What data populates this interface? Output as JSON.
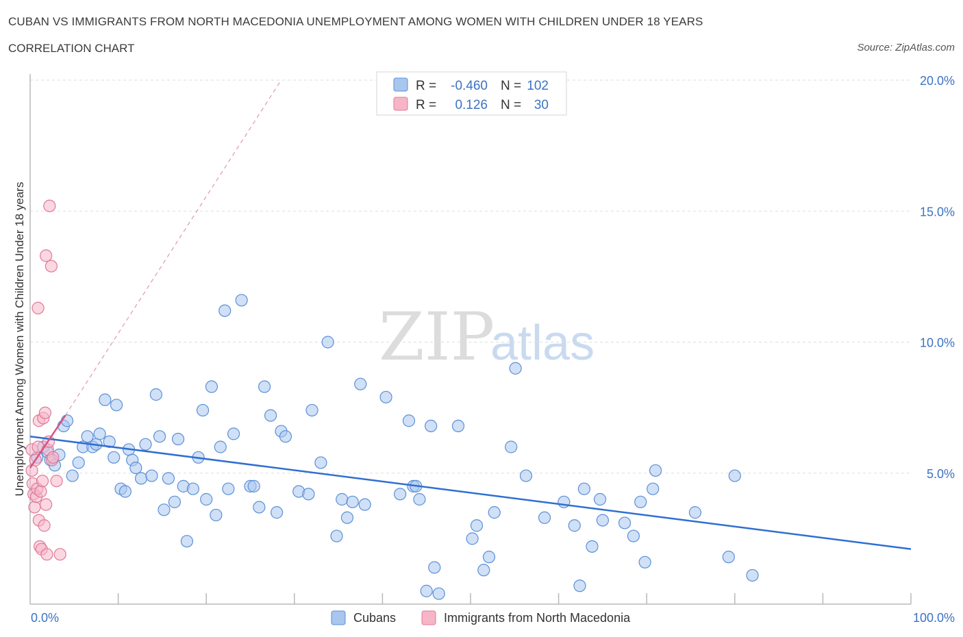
{
  "header": {
    "title": "CUBAN VS IMMIGRANTS FROM NORTH MACEDONIA UNEMPLOYMENT AMONG WOMEN WITH CHILDREN UNDER 18 YEARS",
    "subtitle": "CORRELATION CHART",
    "source": "Source: ZipAtlas.com"
  },
  "watermark": {
    "zip": "ZIP",
    "atlas": "atlas"
  },
  "colors": {
    "blue_fill": "#a9c6ef",
    "blue_stroke": "#5b8fd6",
    "blue_line": "#2f6fd1",
    "pink_fill": "#f6b6c8",
    "pink_stroke": "#e07898",
    "pink_line": "#d9537e",
    "grid": "#dddddd",
    "axis_label": "#3b72c4"
  },
  "legend": {
    "rows": [
      {
        "r_label": "R =",
        "r_value": "-0.460",
        "n_label": "N =",
        "n_value": "102"
      },
      {
        "r_label": "R =",
        "r_value": "0.126",
        "n_label": "N =",
        "n_value": "30"
      }
    ]
  },
  "bottom_legend": {
    "cubans": "Cubans",
    "macedonia": "Immigrants from North Macedonia"
  },
  "chart_data": {
    "type": "scatter",
    "ylabel": "Unemployment Among Women with Children Under 18 years",
    "xlim": [
      0,
      100
    ],
    "ylim": [
      0,
      20
    ],
    "x_tick_labels": [
      "0.0%",
      "100.0%"
    ],
    "y_tick_labels": [
      "5.0%",
      "10.0%",
      "15.0%",
      "20.0%"
    ],
    "y_ticks": [
      5,
      10,
      15,
      20
    ],
    "grid": "horizontal dashed",
    "legend_position": "top-center",
    "series": [
      {
        "name": "Cubans",
        "r": -0.46,
        "n": 102,
        "trend": [
          [
            0,
            6.4
          ],
          [
            100,
            2.1
          ]
        ],
        "points": [
          [
            0.8,
            5.6
          ],
          [
            1.5,
            6.0
          ],
          [
            2.0,
            5.8
          ],
          [
            2.3,
            5.5
          ],
          [
            2.8,
            5.3
          ],
          [
            3.3,
            5.7
          ],
          [
            3.8,
            6.8
          ],
          [
            4.2,
            7.0
          ],
          [
            4.8,
            4.9
          ],
          [
            5.5,
            5.4
          ],
          [
            6.0,
            6.0
          ],
          [
            6.5,
            6.4
          ],
          [
            7.1,
            6.0
          ],
          [
            7.5,
            6.1
          ],
          [
            7.9,
            6.5
          ],
          [
            8.5,
            7.8
          ],
          [
            9.0,
            6.2
          ],
          [
            9.5,
            5.6
          ],
          [
            9.8,
            7.6
          ],
          [
            10.3,
            4.4
          ],
          [
            10.8,
            4.3
          ],
          [
            11.2,
            5.9
          ],
          [
            11.6,
            5.5
          ],
          [
            12.0,
            5.2
          ],
          [
            12.6,
            4.8
          ],
          [
            13.1,
            6.1
          ],
          [
            13.8,
            4.9
          ],
          [
            14.3,
            8.0
          ],
          [
            14.7,
            6.4
          ],
          [
            15.2,
            3.6
          ],
          [
            15.7,
            4.8
          ],
          [
            16.4,
            3.9
          ],
          [
            16.8,
            6.3
          ],
          [
            17.4,
            4.5
          ],
          [
            17.8,
            2.4
          ],
          [
            18.5,
            4.4
          ],
          [
            19.1,
            5.6
          ],
          [
            19.6,
            7.4
          ],
          [
            20.0,
            4.0
          ],
          [
            20.6,
            8.3
          ],
          [
            21.1,
            3.4
          ],
          [
            21.6,
            6.0
          ],
          [
            22.1,
            11.2
          ],
          [
            22.5,
            4.4
          ],
          [
            23.1,
            6.5
          ],
          [
            24.0,
            11.6
          ],
          [
            25.0,
            4.5
          ],
          [
            25.4,
            4.5
          ],
          [
            26.0,
            3.7
          ],
          [
            26.6,
            8.3
          ],
          [
            27.3,
            7.2
          ],
          [
            28.0,
            3.5
          ],
          [
            28.5,
            6.6
          ],
          [
            29.0,
            6.4
          ],
          [
            30.5,
            4.3
          ],
          [
            31.6,
            4.2
          ],
          [
            32.0,
            7.4
          ],
          [
            33.0,
            5.4
          ],
          [
            33.8,
            10.0
          ],
          [
            34.8,
            2.6
          ],
          [
            35.4,
            4.0
          ],
          [
            36.0,
            3.3
          ],
          [
            36.6,
            3.9
          ],
          [
            37.5,
            8.4
          ],
          [
            38.0,
            3.8
          ],
          [
            40.4,
            7.9
          ],
          [
            42.0,
            4.2
          ],
          [
            43.0,
            7.0
          ],
          [
            43.5,
            4.5
          ],
          [
            43.8,
            4.5
          ],
          [
            44.2,
            4.0
          ],
          [
            45.0,
            0.5
          ],
          [
            45.5,
            6.8
          ],
          [
            45.9,
            1.4
          ],
          [
            46.4,
            0.4
          ],
          [
            48.6,
            6.8
          ],
          [
            50.2,
            2.5
          ],
          [
            50.7,
            3.0
          ],
          [
            51.5,
            1.3
          ],
          [
            52.1,
            1.8
          ],
          [
            52.7,
            3.5
          ],
          [
            54.6,
            6.0
          ],
          [
            55.1,
            9.0
          ],
          [
            56.3,
            4.9
          ],
          [
            58.4,
            3.3
          ],
          [
            60.6,
            3.9
          ],
          [
            61.8,
            3.0
          ],
          [
            62.4,
            0.7
          ],
          [
            62.9,
            4.4
          ],
          [
            63.8,
            2.2
          ],
          [
            64.7,
            4.0
          ],
          [
            65.0,
            3.2
          ],
          [
            67.5,
            3.1
          ],
          [
            68.5,
            2.6
          ],
          [
            69.3,
            3.9
          ],
          [
            69.8,
            1.6
          ],
          [
            70.7,
            4.4
          ],
          [
            71.0,
            5.1
          ],
          [
            75.5,
            3.5
          ],
          [
            79.3,
            1.8
          ],
          [
            80.0,
            4.9
          ],
          [
            82.0,
            1.1
          ]
        ]
      },
      {
        "name": "Immigrants from North Macedonia",
        "r": 0.126,
        "n": 30,
        "trend": [
          [
            0,
            5.2
          ],
          [
            4,
            7.2
          ]
        ],
        "trend_extension": [
          [
            4,
            7.2
          ],
          [
            28.5,
            20
          ]
        ],
        "points": [
          [
            0.2,
            5.9
          ],
          [
            0.2,
            5.1
          ],
          [
            0.3,
            4.6
          ],
          [
            0.4,
            4.2
          ],
          [
            0.5,
            3.7
          ],
          [
            0.6,
            5.5
          ],
          [
            0.7,
            4.1
          ],
          [
            0.8,
            4.4
          ],
          [
            0.9,
            6.0
          ],
          [
            1.0,
            3.2
          ],
          [
            1.0,
            7.0
          ],
          [
            1.1,
            2.2
          ],
          [
            1.2,
            4.3
          ],
          [
            1.3,
            2.1
          ],
          [
            1.4,
            4.7
          ],
          [
            1.5,
            7.1
          ],
          [
            1.6,
            3.0
          ],
          [
            1.7,
            7.3
          ],
          [
            1.8,
            13.3
          ],
          [
            1.8,
            3.8
          ],
          [
            1.9,
            1.9
          ],
          [
            2.0,
            5.9
          ],
          [
            2.1,
            6.2
          ],
          [
            2.2,
            15.2
          ],
          [
            2.4,
            12.9
          ],
          [
            2.5,
            5.5
          ],
          [
            2.6,
            5.6
          ],
          [
            3.0,
            4.7
          ],
          [
            3.4,
            1.9
          ],
          [
            0.9,
            11.3
          ]
        ]
      }
    ]
  }
}
